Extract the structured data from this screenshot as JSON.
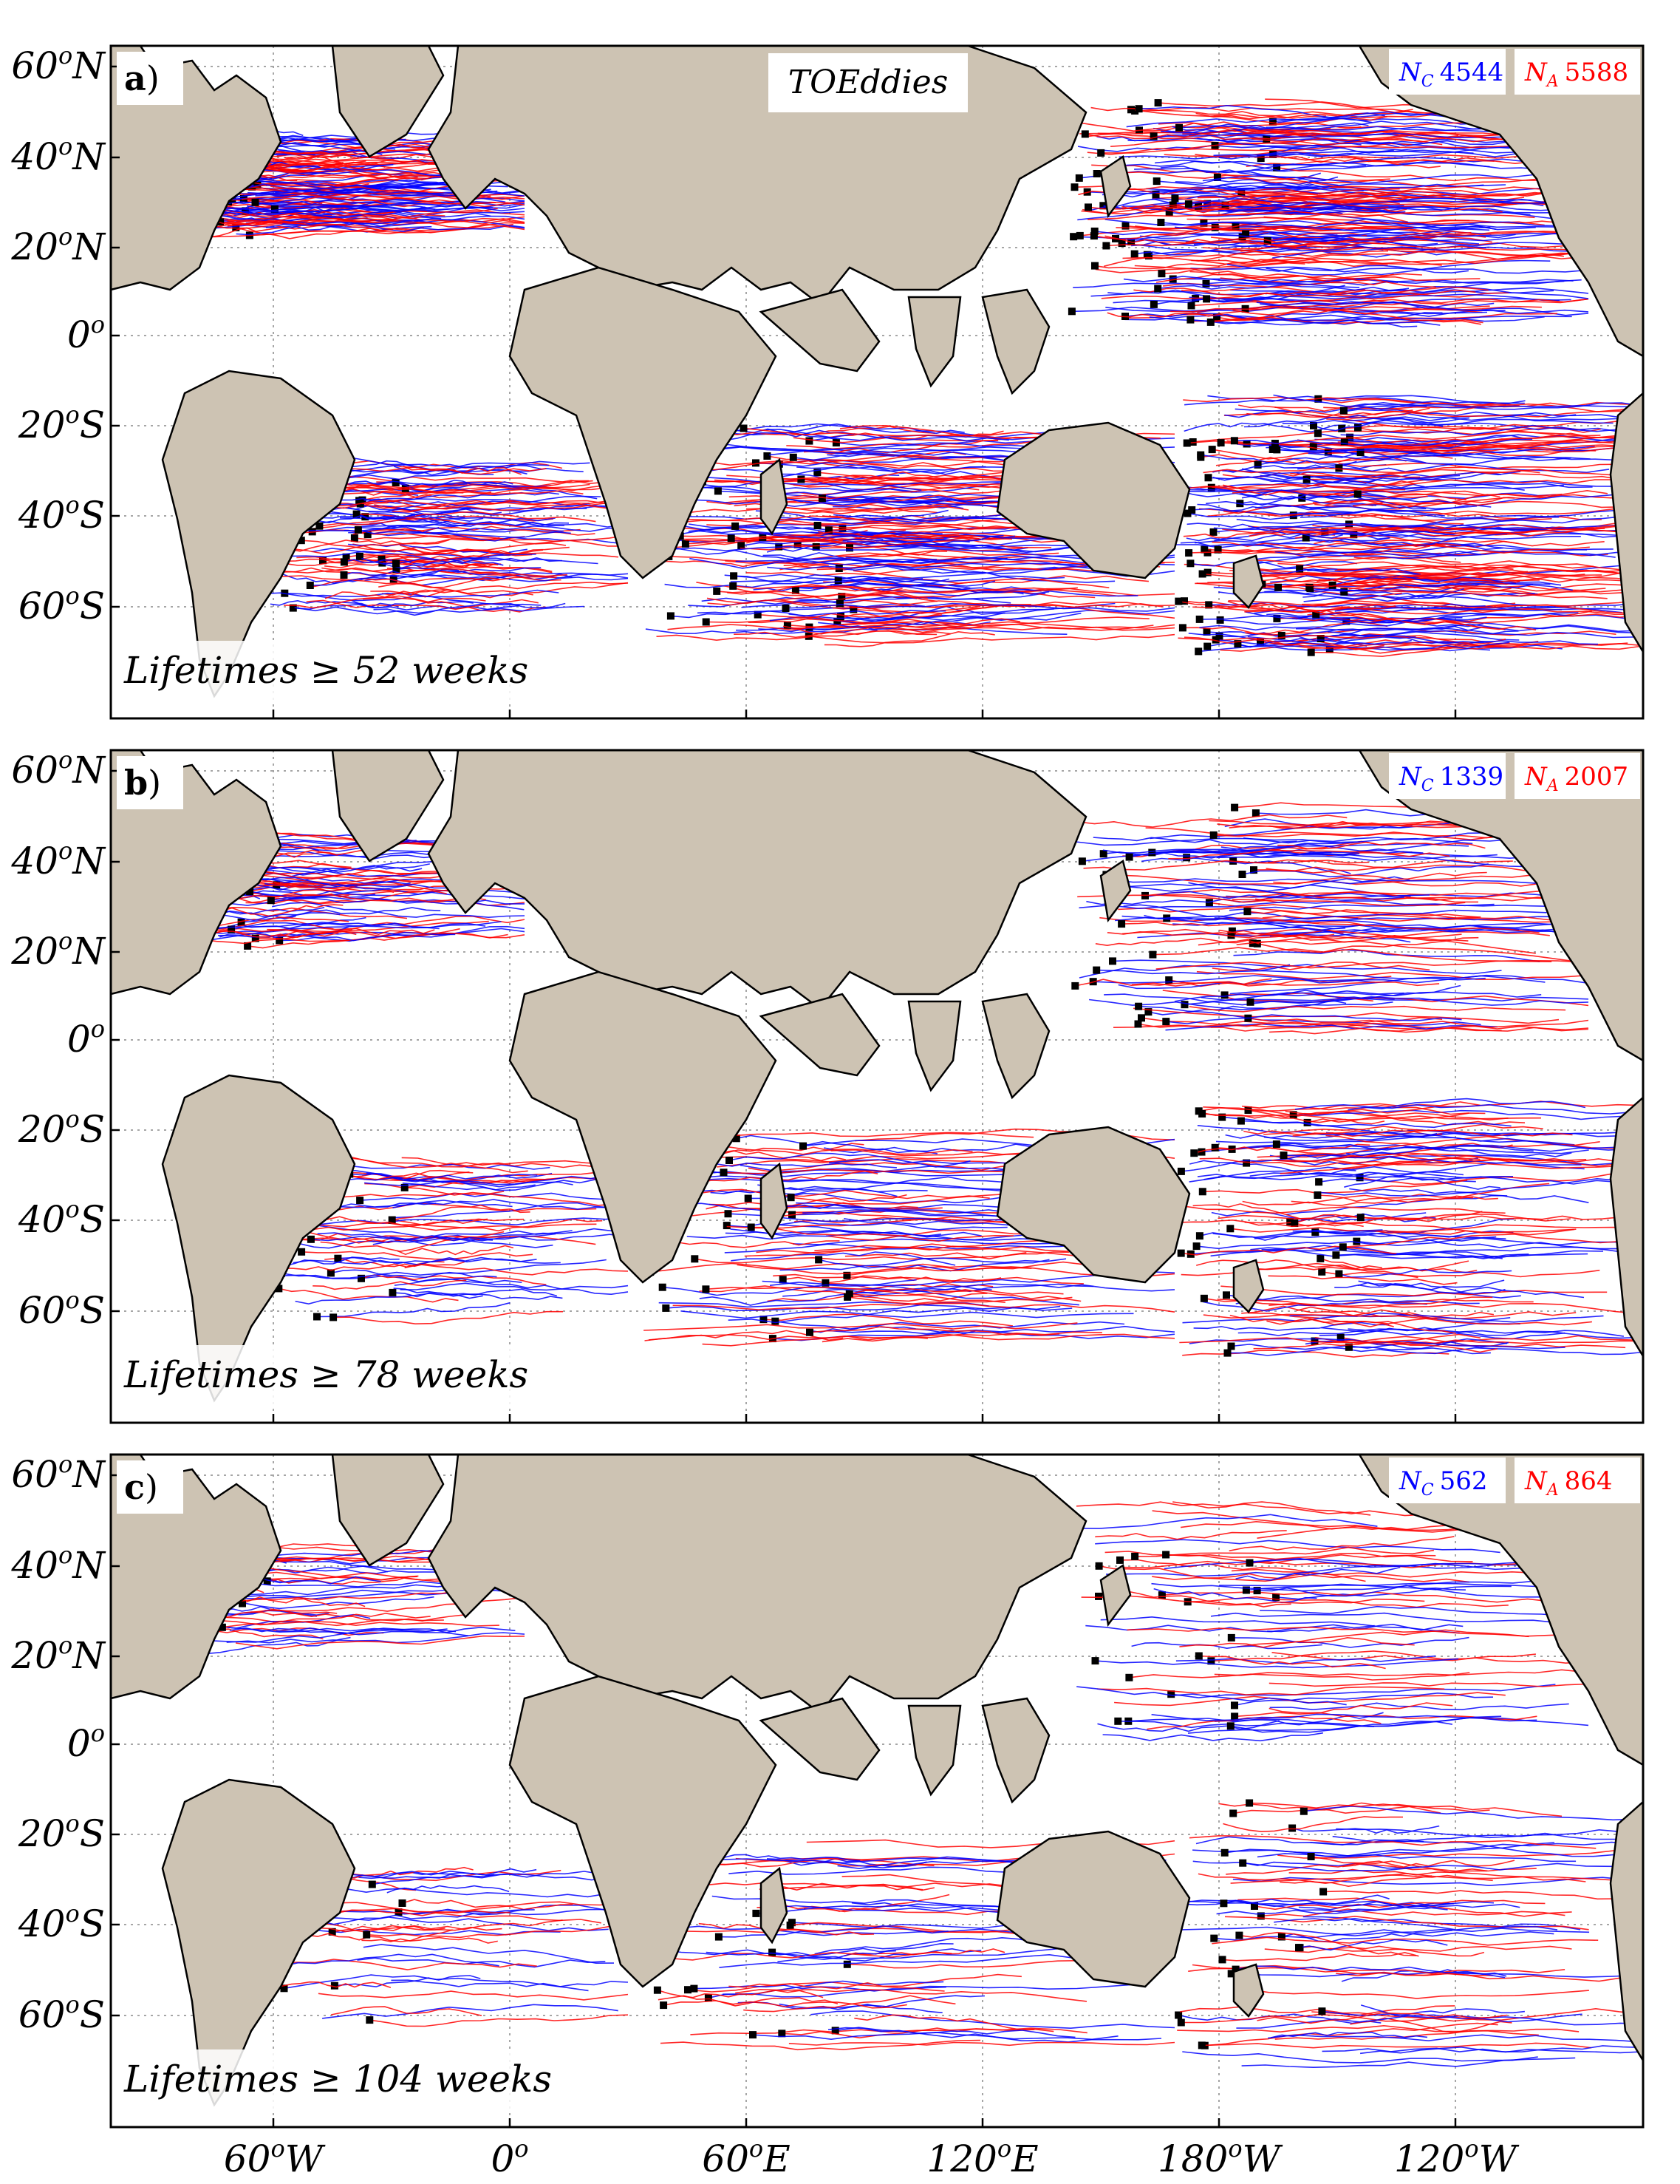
{
  "title": "TOEddies",
  "colors": {
    "cyclonic": "#0000ff",
    "anticyclonic": "#ff0000",
    "land": "#cdc3b3",
    "endpoint": "#000000"
  },
  "y_ticks": [
    {
      "deg": "60",
      "sup": "o",
      "hem": "N"
    },
    {
      "deg": "40",
      "sup": "o",
      "hem": "N"
    },
    {
      "deg": "20",
      "sup": "o",
      "hem": "N"
    },
    {
      "deg": "0",
      "sup": "o",
      "hem": ""
    },
    {
      "deg": "20",
      "sup": "o",
      "hem": "S"
    },
    {
      "deg": "40",
      "sup": "o",
      "hem": "S"
    },
    {
      "deg": "60",
      "sup": "o",
      "hem": "S"
    }
  ],
  "x_ticks": [
    {
      "deg": "60",
      "sup": "o",
      "hem": "W"
    },
    {
      "deg": "0",
      "sup": "o",
      "hem": ""
    },
    {
      "deg": "60",
      "sup": "o",
      "hem": "E"
    },
    {
      "deg": "120",
      "sup": "o",
      "hem": "E"
    },
    {
      "deg": "180",
      "sup": "o",
      "hem": "W"
    },
    {
      "deg": "120",
      "sup": "o",
      "hem": "W"
    }
  ],
  "panels": [
    {
      "letter": "a",
      "lifetime": "Lifetimes ≥ 52 weeks",
      "nc_label": "N",
      "nc_sub": "C",
      "nc": "4544",
      "na_label": "N",
      "na_sub": "A",
      "na": "5588",
      "show_title": true
    },
    {
      "letter": "b",
      "lifetime": "Lifetimes ≥ 78 weeks",
      "nc_label": "N",
      "nc_sub": "C",
      "nc": "1339",
      "na_label": "N",
      "na_sub": "A",
      "na": "2007",
      "show_title": false
    },
    {
      "letter": "c",
      "lifetime": "Lifetimes ≥ 104 weeks",
      "nc_label": "N",
      "nc_sub": "C",
      "nc": "562",
      "na_label": "N",
      "na_sub": "A",
      "na": "864",
      "show_title": false
    }
  ]
}
